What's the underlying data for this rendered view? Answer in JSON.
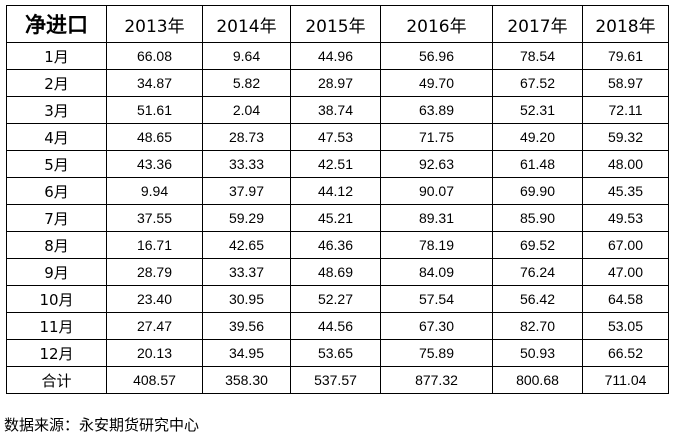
{
  "table": {
    "corner": "净进口",
    "headers": [
      "2013年",
      "2014年",
      "2015年",
      "2016年",
      "2017年",
      "2018年"
    ],
    "rows": [
      {
        "label": "1月",
        "values": [
          "66.08",
          "9.64",
          "44.96",
          "56.96",
          "78.54",
          "79.61"
        ]
      },
      {
        "label": "2月",
        "values": [
          "34.87",
          "5.82",
          "28.97",
          "49.70",
          "67.52",
          "58.97"
        ]
      },
      {
        "label": "3月",
        "values": [
          "51.61",
          "2.04",
          "38.74",
          "63.89",
          "52.31",
          "72.11"
        ]
      },
      {
        "label": "4月",
        "values": [
          "48.65",
          "28.73",
          "47.53",
          "71.75",
          "49.20",
          "59.32"
        ]
      },
      {
        "label": "5月",
        "values": [
          "43.36",
          "33.33",
          "42.51",
          "92.63",
          "61.48",
          "48.00"
        ]
      },
      {
        "label": "6月",
        "values": [
          "9.94",
          "37.97",
          "44.12",
          "90.07",
          "69.90",
          "45.35"
        ]
      },
      {
        "label": "7月",
        "values": [
          "37.55",
          "59.29",
          "45.21",
          "89.31",
          "85.90",
          "49.53"
        ]
      },
      {
        "label": "8月",
        "values": [
          "16.71",
          "42.65",
          "46.36",
          "78.19",
          "69.52",
          "67.00"
        ]
      },
      {
        "label": "9月",
        "values": [
          "28.79",
          "33.37",
          "48.69",
          "84.09",
          "76.24",
          "47.00"
        ]
      },
      {
        "label": "10月",
        "values": [
          "23.40",
          "30.95",
          "52.27",
          "57.54",
          "56.42",
          "64.58"
        ]
      },
      {
        "label": "11月",
        "values": [
          "27.47",
          "39.56",
          "44.56",
          "67.30",
          "82.70",
          "53.05"
        ]
      },
      {
        "label": "12月",
        "values": [
          "20.13",
          "34.95",
          "53.65",
          "75.89",
          "50.93",
          "66.52"
        ]
      },
      {
        "label": "合计",
        "values": [
          "408.57",
          "358.30",
          "537.57",
          "877.32",
          "800.68",
          "711.04"
        ]
      }
    ]
  },
  "source": "数据来源：永安期货研究中心"
}
